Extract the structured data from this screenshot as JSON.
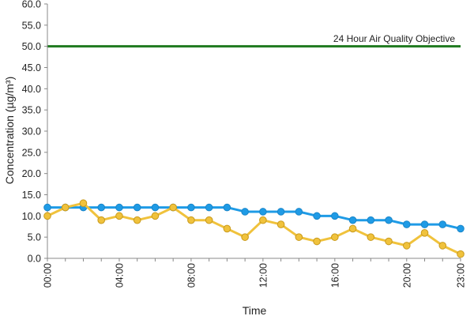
{
  "chart_data": {
    "type": "line",
    "xlabel": "Time",
    "ylabel": "Concentration (µg/m³)",
    "x": [
      "00:00",
      "01:00",
      "02:00",
      "03:00",
      "04:00",
      "05:00",
      "06:00",
      "07:00",
      "08:00",
      "09:00",
      "10:00",
      "11:00",
      "12:00",
      "13:00",
      "14:00",
      "15:00",
      "16:00",
      "17:00",
      "18:00",
      "19:00",
      "20:00",
      "21:00",
      "22:00",
      "23:00"
    ],
    "x_tick_labels": [
      "00:00",
      "04:00",
      "08:00",
      "12:00",
      "16:00",
      "20:00",
      "23:00"
    ],
    "ylim": [
      0,
      60
    ],
    "y_ticks": [
      "0.0",
      "5.0",
      "10.0",
      "15.0",
      "20.0",
      "25.0",
      "30.0",
      "35.0",
      "40.0",
      "45.0",
      "50.0",
      "55.0",
      "60.0"
    ],
    "grid": false,
    "series": [
      {
        "color": "#1f9be6",
        "values": [
          12,
          12,
          12,
          12,
          12,
          12,
          12,
          12,
          12,
          12,
          12,
          11,
          11,
          11,
          11,
          10,
          10,
          9,
          9,
          9,
          8,
          8,
          8,
          7
        ]
      },
      {
        "color": "#f0c23c",
        "values": [
          10,
          12,
          13,
          9,
          10,
          9,
          10,
          12,
          9,
          9,
          7,
          5,
          9,
          8,
          5,
          4,
          5,
          7,
          5,
          4,
          3,
          6,
          3,
          1
        ]
      }
    ],
    "reference_line": {
      "label": "24 Hour Air Quality Objective",
      "value": 50,
      "color": "#1f7a1f"
    }
  }
}
